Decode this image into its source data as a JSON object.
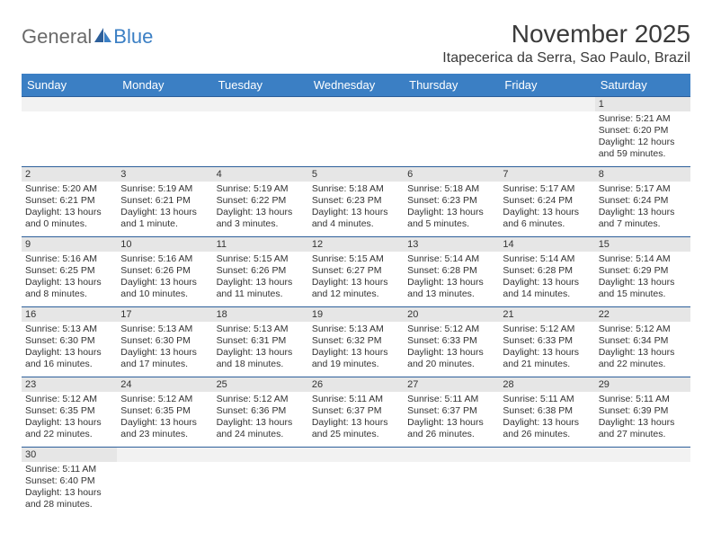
{
  "logo": {
    "general": "General",
    "blue": "Blue"
  },
  "title": "November 2025",
  "location": "Itapecerica da Serra, Sao Paulo, Brazil",
  "colors": {
    "header_bg": "#3b7fc4",
    "header_text": "#ffffff",
    "grid_border": "#2d5f9a",
    "daynum_bg": "#e6e6e6",
    "text": "#333333"
  },
  "weekdays": [
    "Sunday",
    "Monday",
    "Tuesday",
    "Wednesday",
    "Thursday",
    "Friday",
    "Saturday"
  ],
  "weeks": [
    [
      null,
      null,
      null,
      null,
      null,
      null,
      {
        "n": "1",
        "sr": "Sunrise: 5:21 AM",
        "ss": "Sunset: 6:20 PM",
        "dl": "Daylight: 12 hours and 59 minutes."
      }
    ],
    [
      {
        "n": "2",
        "sr": "Sunrise: 5:20 AM",
        "ss": "Sunset: 6:21 PM",
        "dl": "Daylight: 13 hours and 0 minutes."
      },
      {
        "n": "3",
        "sr": "Sunrise: 5:19 AM",
        "ss": "Sunset: 6:21 PM",
        "dl": "Daylight: 13 hours and 1 minute."
      },
      {
        "n": "4",
        "sr": "Sunrise: 5:19 AM",
        "ss": "Sunset: 6:22 PM",
        "dl": "Daylight: 13 hours and 3 minutes."
      },
      {
        "n": "5",
        "sr": "Sunrise: 5:18 AM",
        "ss": "Sunset: 6:23 PM",
        "dl": "Daylight: 13 hours and 4 minutes."
      },
      {
        "n": "6",
        "sr": "Sunrise: 5:18 AM",
        "ss": "Sunset: 6:23 PM",
        "dl": "Daylight: 13 hours and 5 minutes."
      },
      {
        "n": "7",
        "sr": "Sunrise: 5:17 AM",
        "ss": "Sunset: 6:24 PM",
        "dl": "Daylight: 13 hours and 6 minutes."
      },
      {
        "n": "8",
        "sr": "Sunrise: 5:17 AM",
        "ss": "Sunset: 6:24 PM",
        "dl": "Daylight: 13 hours and 7 minutes."
      }
    ],
    [
      {
        "n": "9",
        "sr": "Sunrise: 5:16 AM",
        "ss": "Sunset: 6:25 PM",
        "dl": "Daylight: 13 hours and 8 minutes."
      },
      {
        "n": "10",
        "sr": "Sunrise: 5:16 AM",
        "ss": "Sunset: 6:26 PM",
        "dl": "Daylight: 13 hours and 10 minutes."
      },
      {
        "n": "11",
        "sr": "Sunrise: 5:15 AM",
        "ss": "Sunset: 6:26 PM",
        "dl": "Daylight: 13 hours and 11 minutes."
      },
      {
        "n": "12",
        "sr": "Sunrise: 5:15 AM",
        "ss": "Sunset: 6:27 PM",
        "dl": "Daylight: 13 hours and 12 minutes."
      },
      {
        "n": "13",
        "sr": "Sunrise: 5:14 AM",
        "ss": "Sunset: 6:28 PM",
        "dl": "Daylight: 13 hours and 13 minutes."
      },
      {
        "n": "14",
        "sr": "Sunrise: 5:14 AM",
        "ss": "Sunset: 6:28 PM",
        "dl": "Daylight: 13 hours and 14 minutes."
      },
      {
        "n": "15",
        "sr": "Sunrise: 5:14 AM",
        "ss": "Sunset: 6:29 PM",
        "dl": "Daylight: 13 hours and 15 minutes."
      }
    ],
    [
      {
        "n": "16",
        "sr": "Sunrise: 5:13 AM",
        "ss": "Sunset: 6:30 PM",
        "dl": "Daylight: 13 hours and 16 minutes."
      },
      {
        "n": "17",
        "sr": "Sunrise: 5:13 AM",
        "ss": "Sunset: 6:30 PM",
        "dl": "Daylight: 13 hours and 17 minutes."
      },
      {
        "n": "18",
        "sr": "Sunrise: 5:13 AM",
        "ss": "Sunset: 6:31 PM",
        "dl": "Daylight: 13 hours and 18 minutes."
      },
      {
        "n": "19",
        "sr": "Sunrise: 5:13 AM",
        "ss": "Sunset: 6:32 PM",
        "dl": "Daylight: 13 hours and 19 minutes."
      },
      {
        "n": "20",
        "sr": "Sunrise: 5:12 AM",
        "ss": "Sunset: 6:33 PM",
        "dl": "Daylight: 13 hours and 20 minutes."
      },
      {
        "n": "21",
        "sr": "Sunrise: 5:12 AM",
        "ss": "Sunset: 6:33 PM",
        "dl": "Daylight: 13 hours and 21 minutes."
      },
      {
        "n": "22",
        "sr": "Sunrise: 5:12 AM",
        "ss": "Sunset: 6:34 PM",
        "dl": "Daylight: 13 hours and 22 minutes."
      }
    ],
    [
      {
        "n": "23",
        "sr": "Sunrise: 5:12 AM",
        "ss": "Sunset: 6:35 PM",
        "dl": "Daylight: 13 hours and 22 minutes."
      },
      {
        "n": "24",
        "sr": "Sunrise: 5:12 AM",
        "ss": "Sunset: 6:35 PM",
        "dl": "Daylight: 13 hours and 23 minutes."
      },
      {
        "n": "25",
        "sr": "Sunrise: 5:12 AM",
        "ss": "Sunset: 6:36 PM",
        "dl": "Daylight: 13 hours and 24 minutes."
      },
      {
        "n": "26",
        "sr": "Sunrise: 5:11 AM",
        "ss": "Sunset: 6:37 PM",
        "dl": "Daylight: 13 hours and 25 minutes."
      },
      {
        "n": "27",
        "sr": "Sunrise: 5:11 AM",
        "ss": "Sunset: 6:37 PM",
        "dl": "Daylight: 13 hours and 26 minutes."
      },
      {
        "n": "28",
        "sr": "Sunrise: 5:11 AM",
        "ss": "Sunset: 6:38 PM",
        "dl": "Daylight: 13 hours and 26 minutes."
      },
      {
        "n": "29",
        "sr": "Sunrise: 5:11 AM",
        "ss": "Sunset: 6:39 PM",
        "dl": "Daylight: 13 hours and 27 minutes."
      }
    ],
    [
      {
        "n": "30",
        "sr": "Sunrise: 5:11 AM",
        "ss": "Sunset: 6:40 PM",
        "dl": "Daylight: 13 hours and 28 minutes."
      },
      null,
      null,
      null,
      null,
      null,
      null
    ]
  ]
}
